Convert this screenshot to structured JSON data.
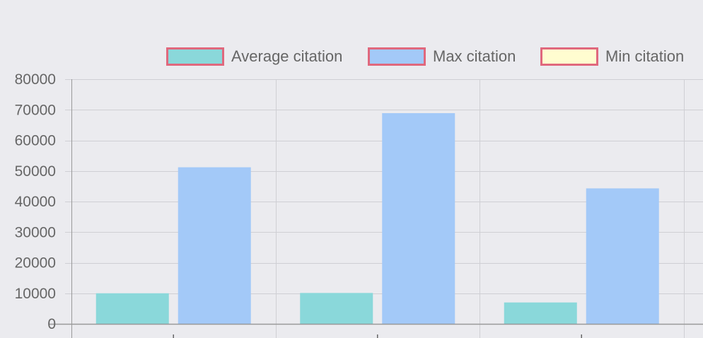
{
  "chart_data": {
    "type": "bar",
    "title": "",
    "xlabel": "",
    "ylabel": "",
    "categories": [
      "",
      "",
      ""
    ],
    "series": [
      {
        "name": "Average citation",
        "color": "#8ad8da",
        "values": [
          10000,
          10100,
          7000
        ]
      },
      {
        "name": "Max citation",
        "color": "#a3c9f8",
        "values": [
          51200,
          68900,
          44300
        ]
      },
      {
        "name": "Min citation",
        "color": "#fffdd0",
        "values": [
          0,
          0,
          0
        ]
      }
    ],
    "ylim": [
      0,
      80000
    ],
    "yticks": [
      0,
      10000,
      20000,
      30000,
      40000,
      50000,
      60000,
      70000,
      80000
    ],
    "ytick_labels": [
      "0",
      "10000",
      "20000",
      "30000",
      "40000",
      "50000",
      "60000",
      "70000",
      "80000"
    ],
    "grid": true,
    "legend_position": "top",
    "legend_border_color": "#e0687d",
    "grid_color": "#cfcfd4",
    "axis_color": "#999999",
    "background": "#ebebef"
  }
}
